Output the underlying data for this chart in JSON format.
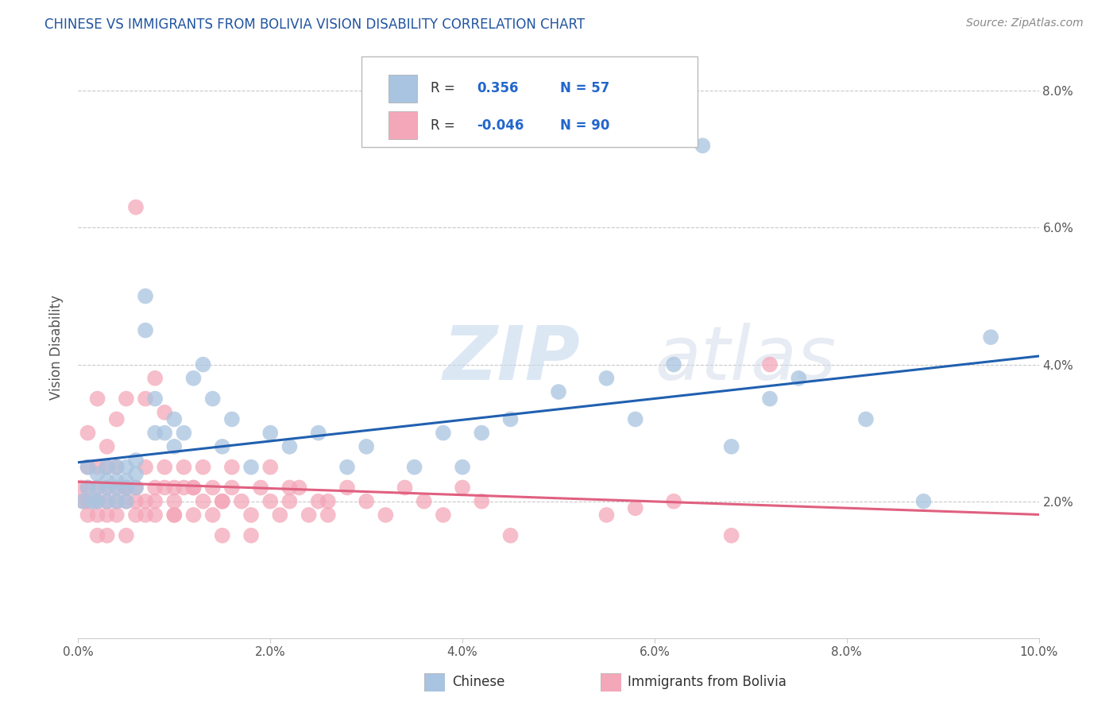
{
  "title": "CHINESE VS IMMIGRANTS FROM BOLIVIA VISION DISABILITY CORRELATION CHART",
  "source_text": "Source: ZipAtlas.com",
  "ylabel": "Vision Disability",
  "xlabel": "",
  "xlim": [
    0.0,
    0.1
  ],
  "ylim": [
    0.0,
    0.085
  ],
  "xticks": [
    0.0,
    0.02,
    0.04,
    0.06,
    0.08,
    0.1
  ],
  "yticks": [
    0.02,
    0.04,
    0.06,
    0.08
  ],
  "xticklabels": [
    "0.0%",
    "2.0%",
    "4.0%",
    "6.0%",
    "8.0%",
    "10.0%"
  ],
  "yticklabels_right": [
    "2.0%",
    "4.0%",
    "6.0%",
    "8.0%"
  ],
  "chinese_R": 0.356,
  "chinese_N": 57,
  "bolivia_R": -0.046,
  "bolivia_N": 90,
  "chinese_color": "#a8c4e0",
  "bolivia_color": "#f4a7b9",
  "chinese_line_color": "#2060b0",
  "bolivia_line_color": "#e06080",
  "watermark_zip": "ZIP",
  "watermark_atlas": "atlas",
  "background_color": "#ffffff",
  "grid_color": "#bbbbbb",
  "title_color": "#2255a0",
  "source_color": "#888888",
  "ylabel_color": "#555555",
  "tick_color": "#555555",
  "legend_text_color": "#2266cc",
  "chinese_x": [
    0.0005,
    0.001,
    0.001,
    0.0015,
    0.002,
    0.002,
    0.002,
    0.003,
    0.003,
    0.003,
    0.003,
    0.004,
    0.004,
    0.004,
    0.004,
    0.005,
    0.005,
    0.005,
    0.005,
    0.006,
    0.006,
    0.006,
    0.007,
    0.007,
    0.008,
    0.008,
    0.009,
    0.01,
    0.01,
    0.011,
    0.012,
    0.013,
    0.014,
    0.015,
    0.016,
    0.018,
    0.02,
    0.022,
    0.025,
    0.028,
    0.03,
    0.035,
    0.038,
    0.04,
    0.042,
    0.045,
    0.05,
    0.055,
    0.058,
    0.062,
    0.065,
    0.068,
    0.072,
    0.075,
    0.082,
    0.088,
    0.095
  ],
  "chinese_y": [
    0.02,
    0.022,
    0.025,
    0.02,
    0.022,
    0.024,
    0.02,
    0.023,
    0.025,
    0.022,
    0.02,
    0.023,
    0.022,
    0.02,
    0.025,
    0.023,
    0.022,
    0.025,
    0.02,
    0.024,
    0.022,
    0.026,
    0.05,
    0.045,
    0.03,
    0.035,
    0.03,
    0.032,
    0.028,
    0.03,
    0.038,
    0.04,
    0.035,
    0.028,
    0.032,
    0.025,
    0.03,
    0.028,
    0.03,
    0.025,
    0.028,
    0.025,
    0.03,
    0.025,
    0.03,
    0.032,
    0.036,
    0.038,
    0.032,
    0.04,
    0.072,
    0.028,
    0.035,
    0.038,
    0.032,
    0.02,
    0.044
  ],
  "bolivia_x": [
    0.0003,
    0.0005,
    0.001,
    0.001,
    0.001,
    0.001,
    0.002,
    0.002,
    0.002,
    0.002,
    0.002,
    0.003,
    0.003,
    0.003,
    0.003,
    0.003,
    0.004,
    0.004,
    0.004,
    0.004,
    0.005,
    0.005,
    0.005,
    0.005,
    0.006,
    0.006,
    0.006,
    0.007,
    0.007,
    0.007,
    0.008,
    0.008,
    0.008,
    0.009,
    0.009,
    0.01,
    0.01,
    0.01,
    0.011,
    0.011,
    0.012,
    0.012,
    0.013,
    0.013,
    0.014,
    0.014,
    0.015,
    0.015,
    0.016,
    0.016,
    0.017,
    0.018,
    0.019,
    0.02,
    0.02,
    0.021,
    0.022,
    0.023,
    0.024,
    0.025,
    0.026,
    0.028,
    0.03,
    0.032,
    0.034,
    0.036,
    0.038,
    0.04,
    0.042,
    0.045,
    0.001,
    0.002,
    0.003,
    0.004,
    0.005,
    0.006,
    0.007,
    0.008,
    0.009,
    0.01,
    0.012,
    0.015,
    0.018,
    0.022,
    0.026,
    0.055,
    0.058,
    0.062,
    0.068,
    0.072
  ],
  "bolivia_y": [
    0.022,
    0.02,
    0.018,
    0.022,
    0.025,
    0.02,
    0.015,
    0.02,
    0.022,
    0.025,
    0.018,
    0.022,
    0.02,
    0.018,
    0.025,
    0.015,
    0.022,
    0.02,
    0.025,
    0.018,
    0.022,
    0.02,
    0.015,
    0.022,
    0.02,
    0.018,
    0.022,
    0.025,
    0.02,
    0.018,
    0.022,
    0.02,
    0.018,
    0.022,
    0.025,
    0.02,
    0.022,
    0.018,
    0.022,
    0.025,
    0.018,
    0.022,
    0.02,
    0.025,
    0.018,
    0.022,
    0.02,
    0.015,
    0.022,
    0.025,
    0.02,
    0.018,
    0.022,
    0.02,
    0.025,
    0.018,
    0.02,
    0.022,
    0.018,
    0.02,
    0.018,
    0.022,
    0.02,
    0.018,
    0.022,
    0.02,
    0.018,
    0.022,
    0.02,
    0.015,
    0.03,
    0.035,
    0.028,
    0.032,
    0.035,
    0.063,
    0.035,
    0.038,
    0.033,
    0.018,
    0.022,
    0.02,
    0.015,
    0.022,
    0.02,
    0.018,
    0.019,
    0.02,
    0.015,
    0.04
  ]
}
